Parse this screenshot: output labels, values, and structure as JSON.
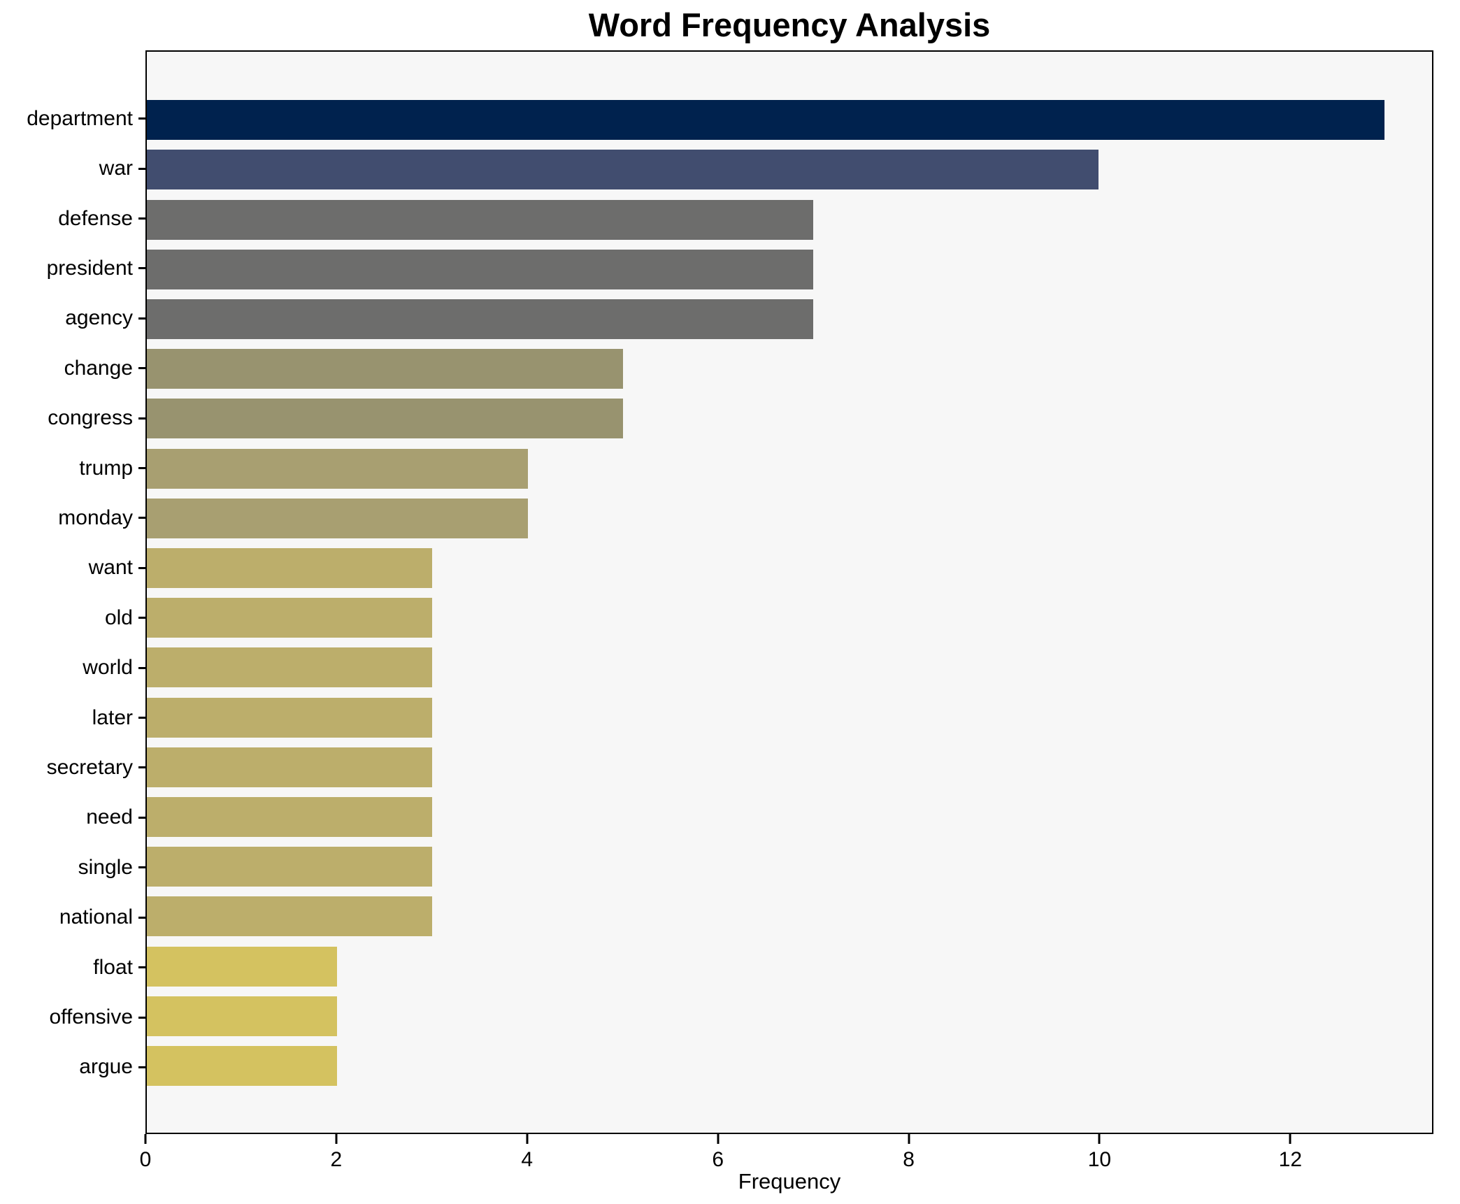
{
  "chart_data": {
    "type": "bar",
    "orientation": "horizontal",
    "title": "Word Frequency Analysis",
    "xlabel": "Frequency",
    "ylabel": "",
    "categories": [
      "department",
      "war",
      "defense",
      "president",
      "agency",
      "change",
      "congress",
      "trump",
      "monday",
      "want",
      "old",
      "world",
      "later",
      "secretary",
      "need",
      "single",
      "national",
      "float",
      "offensive",
      "argue"
    ],
    "values": [
      13,
      10,
      7,
      7,
      7,
      5,
      5,
      4,
      4,
      3,
      3,
      3,
      3,
      3,
      3,
      3,
      3,
      2,
      2,
      2
    ],
    "bar_colors": [
      "#00224e",
      "#414d6f",
      "#6d6d6c",
      "#6d6d6c",
      "#6d6d6c",
      "#98936f",
      "#98936f",
      "#a89f71",
      "#a89f71",
      "#bcae6b",
      "#bcae6b",
      "#bcae6b",
      "#bcae6b",
      "#bcae6b",
      "#bcae6b",
      "#bcae6b",
      "#bcae6b",
      "#d4c260",
      "#d4c260",
      "#d4c260"
    ],
    "xlim": [
      0,
      13.5
    ],
    "x_ticks": [
      0,
      2,
      4,
      6,
      8,
      10,
      12
    ],
    "grid": false,
    "legend": false,
    "colors": {
      "plot_background": "#f7f7f7",
      "figure_background": "#ffffff",
      "axis_frame": "#000000",
      "text": "#000000"
    }
  }
}
